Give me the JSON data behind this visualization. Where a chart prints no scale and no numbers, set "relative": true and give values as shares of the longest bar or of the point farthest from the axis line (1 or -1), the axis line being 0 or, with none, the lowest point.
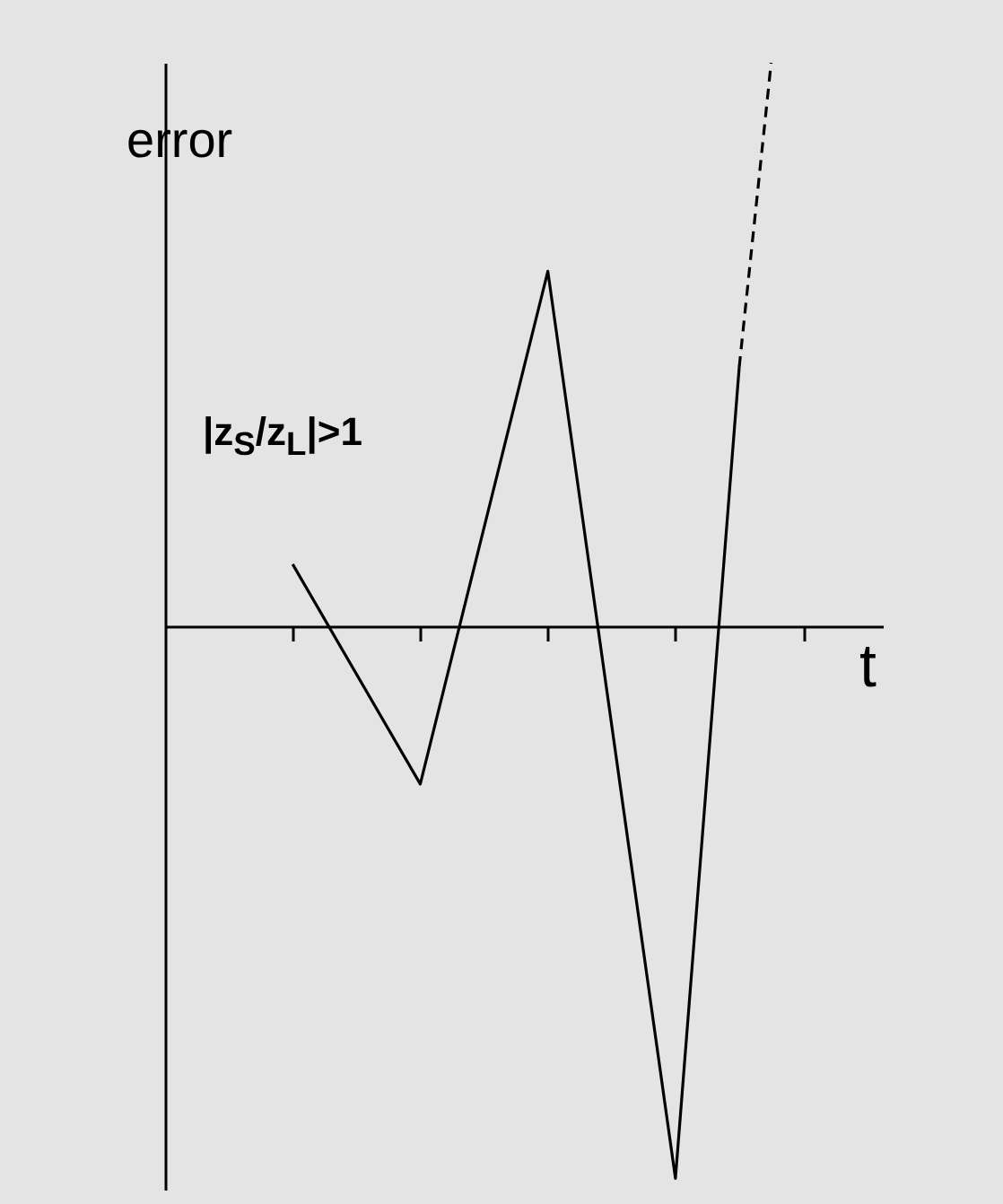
{
  "chart_data": {
    "type": "line",
    "relative": true,
    "xlabel": "t",
    "ylabel": "error",
    "annotations": [
      "|z$_{S}$/z$_{L}$|>1"
    ],
    "categories": [
      null,
      null,
      null,
      null,
      null,
      null,
      null,
      null,
      null,
      null,
      null,
      null,
      null,
      null,
      null,
      null,
      null,
      null,
      null,
      null,
      null,
      null,
      null
    ],
    "series": [
      {
        "color": "#000000",
        "line_style": "solid",
        "values": [
          null,
          null,
          null,
          null,
          0.11,
          null,
          null,
          null,
          -0.28,
          null,
          null,
          null,
          0.63,
          null,
          null,
          null,
          -0.98,
          null,
          0.46,
          null,
          null,
          null,
          null
        ]
      },
      {
        "color": "#000000",
        "line_style": "dashed",
        "values": [
          null,
          null,
          null,
          null,
          null,
          null,
          null,
          null,
          null,
          null,
          null,
          null,
          null,
          null,
          null,
          null,
          null,
          null,
          0.46,
          1,
          null,
          null,
          null
        ]
      }
    ]
  }
}
